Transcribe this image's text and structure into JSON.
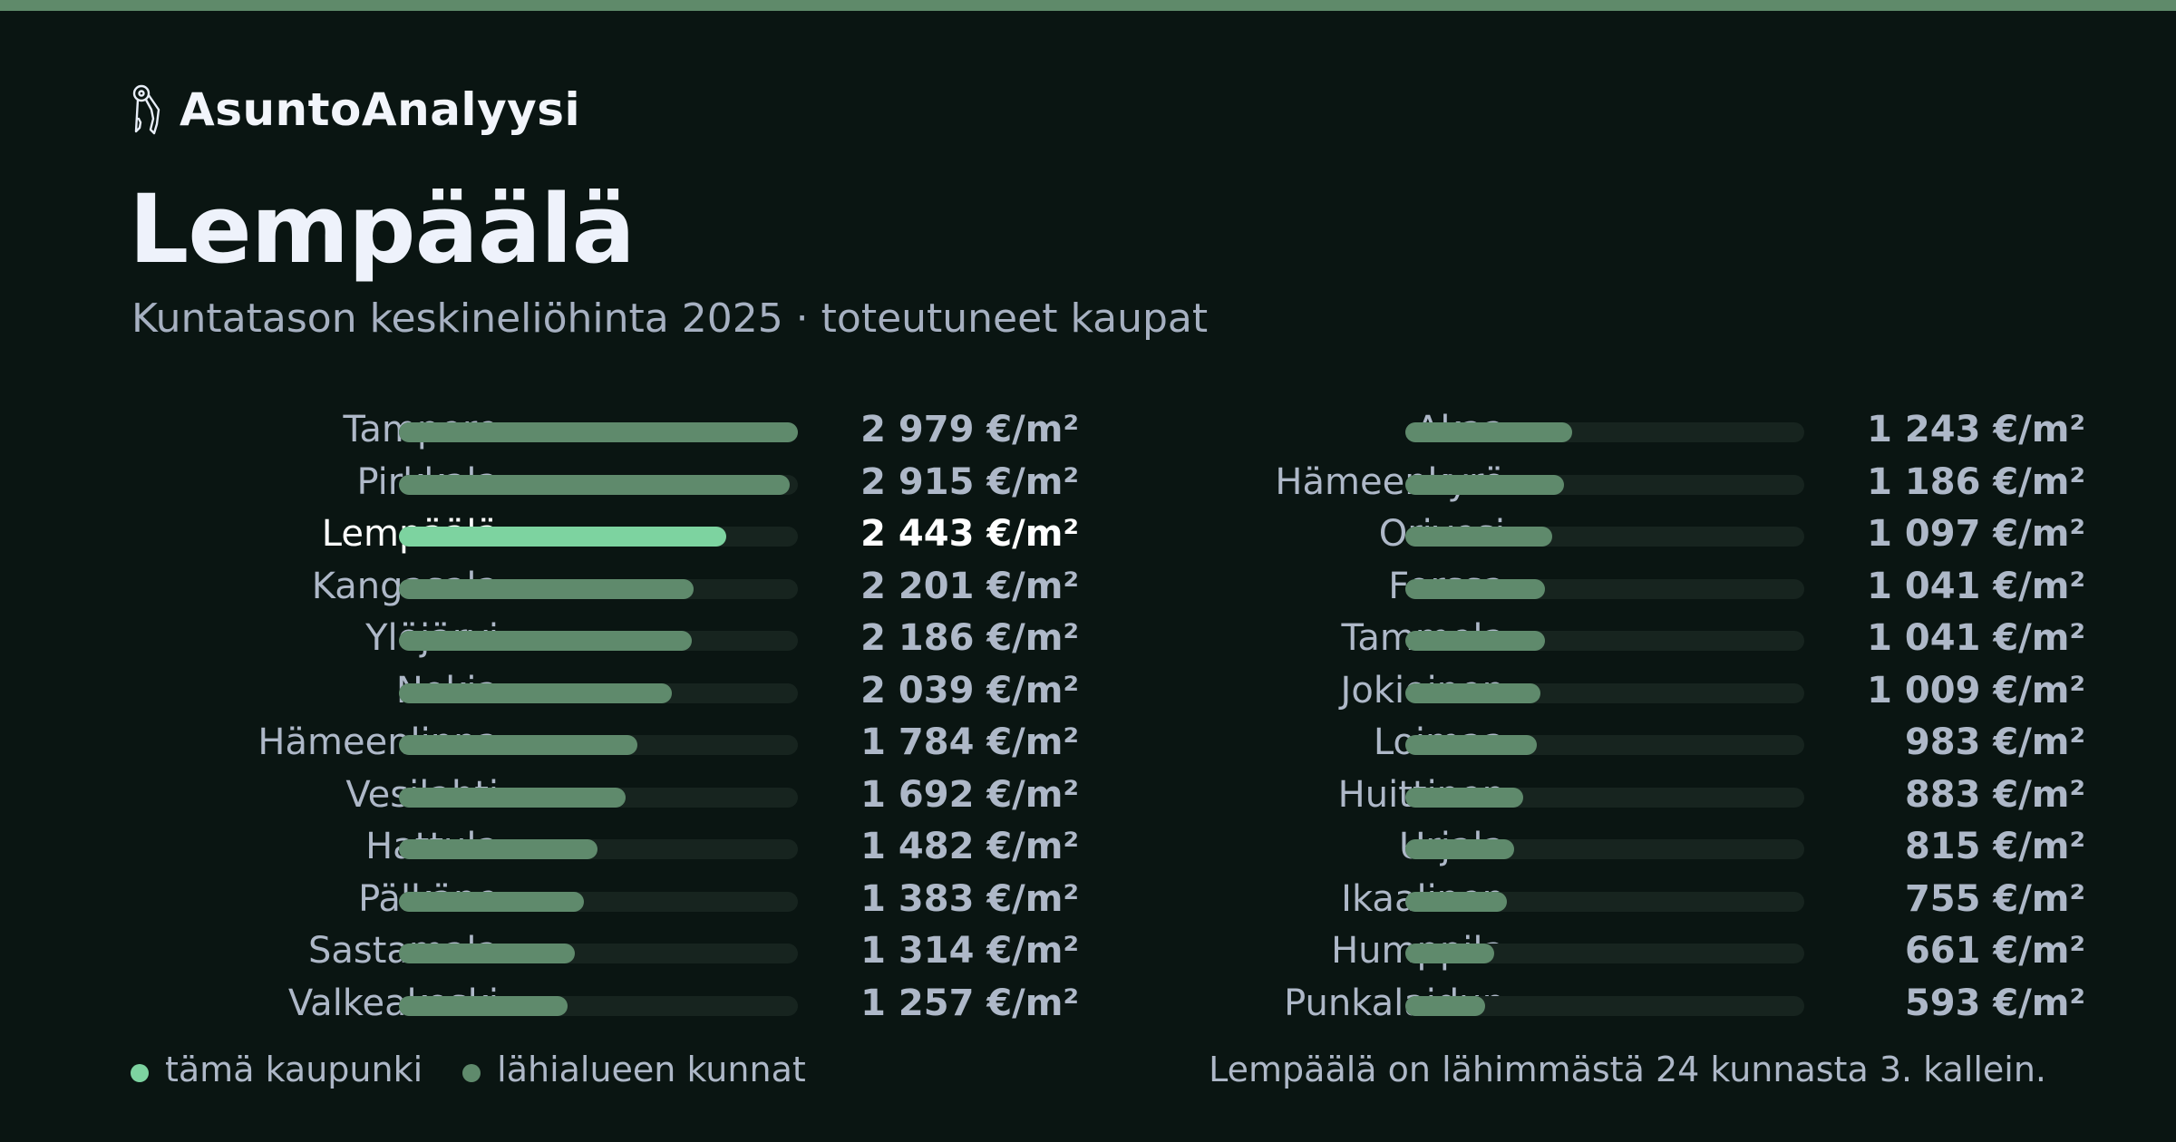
{
  "brand": {
    "name": "AsuntoAnalyysi",
    "icon": "keys-icon"
  },
  "header": {
    "title": "Lempäälä",
    "subtitle": "Kuntatason keskineliöhinta 2025 · toteutuneet kaupat"
  },
  "colors": {
    "accent": "#7dd3a0",
    "bar": "#5f8a6c",
    "track": "#17241f",
    "background": "#0a1512",
    "top_bar": "#5f8a6a"
  },
  "chart_data": {
    "type": "bar",
    "orientation": "horizontal",
    "unit": "€/m²",
    "xlim": [
      0,
      2979
    ],
    "highlight": "Lempäälä",
    "categories": [
      "Tampere",
      "Pirkkala",
      "Lempäälä",
      "Kangasala",
      "Ylöjärvi",
      "Nokia",
      "Hämeenlinna",
      "Vesilahti",
      "Hattula",
      "Pälkäne",
      "Sastamala",
      "Valkeakoski",
      "Akaa",
      "Hämeenkyrö",
      "Orivesi",
      "Forssa",
      "Tammela",
      "Jokioinen",
      "Loimaa",
      "Huittinen",
      "Urjala",
      "Ikaalinen",
      "Humppila",
      "Punkalaidun"
    ],
    "values": [
      2979,
      2915,
      2443,
      2201,
      2186,
      2039,
      1784,
      1692,
      1482,
      1383,
      1314,
      1257,
      1243,
      1186,
      1097,
      1041,
      1041,
      1009,
      983,
      883,
      815,
      755,
      661,
      593
    ],
    "value_labels": [
      "2 979 €/m²",
      "2 915 €/m²",
      "2 443 €/m²",
      "2 201 €/m²",
      "2 186 €/m²",
      "2 039 €/m²",
      "1 784 €/m²",
      "1 692 €/m²",
      "1 482 €/m²",
      "1 383 €/m²",
      "1 314 €/m²",
      "1 257 €/m²",
      "1 243 €/m²",
      "1 186 €/m²",
      "1 097 €/m²",
      "1 041 €/m²",
      "1 041 €/m²",
      "1 009 €/m²",
      "983 €/m²",
      "883 €/m²",
      "815 €/m²",
      "755 €/m²",
      "661 €/m²",
      "593 €/m²"
    ],
    "legend": [
      "tämä kaupunki",
      "lähialueen kunnat"
    ],
    "note": "Lempäälä on lähimmästä 24 kunnasta 3. kallein."
  }
}
